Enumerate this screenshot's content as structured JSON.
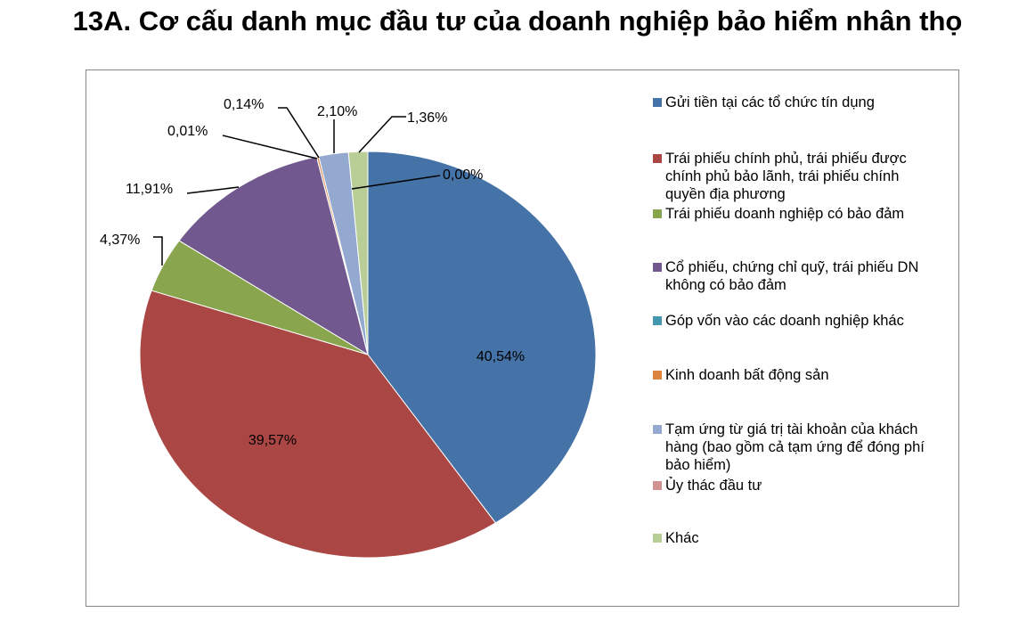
{
  "chart_data": {
    "type": "pie",
    "title": "13A. Cơ cấu danh mục đầu tư của doanh nghiệp bảo hiểm nhân thọ",
    "legend_position": "right",
    "slices": [
      {
        "label": "Gửi tiền tại các tổ chức tín dụng",
        "value": 40.54,
        "text": "40,54%",
        "color": "#4572A7"
      },
      {
        "label": "Trái phiếu chính phủ, trái phiếu được chính phủ bảo lãnh, trái phiếu chính quyền địa phương",
        "value": 39.57,
        "text": "39,57%",
        "color": "#AA4643"
      },
      {
        "label": "Trái phiếu doanh nghiệp có bảo đảm",
        "value": 4.37,
        "text": "4,37%",
        "color": "#89A54E"
      },
      {
        "label": "Cổ phiếu, chứng chỉ quỹ, trái phiếu DN không có bảo đảm",
        "value": 11.91,
        "text": "11,91%",
        "color": "#71588F"
      },
      {
        "label": "Góp vốn vào các doanh nghiệp khác",
        "value": 0.01,
        "text": "0,01%",
        "color": "#4198AF"
      },
      {
        "label": "Kinh doanh bất động sản",
        "value": 0.14,
        "text": "0,14%",
        "color": "#DB843D"
      },
      {
        "label": "Tạm ứng từ giá trị tài khoản của khách hàng (bao gồm cả tạm ứng để đóng phí bảo hiểm)",
        "value": 2.1,
        "text": "2,10%",
        "color": "#93A9CF"
      },
      {
        "label": "Ủy thác đầu tư",
        "value": 0.0,
        "text": "0,00%",
        "color": "#D19392"
      },
      {
        "label": "Khác",
        "value": 1.36,
        "text": "1,36%",
        "color": "#B9CD96"
      }
    ]
  }
}
